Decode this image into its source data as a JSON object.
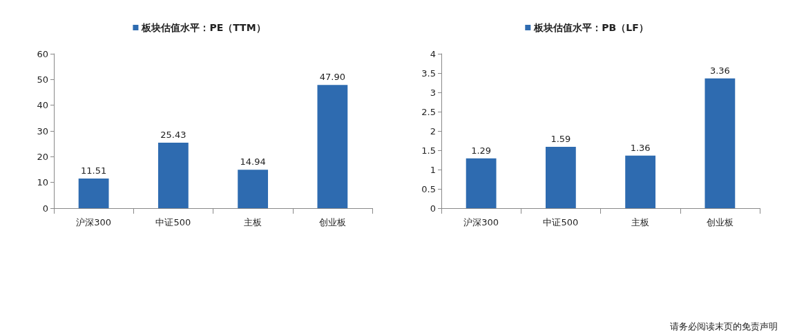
{
  "chart_data": [
    {
      "type": "bar",
      "categories": [
        "沪深300",
        "中证500",
        "主板",
        "创业板"
      ],
      "series": [
        {
          "name": "板块估值水平：PE（TTM）",
          "color": "#2e6bb0",
          "values": [
            11.51,
            25.43,
            14.94,
            47.9
          ]
        }
      ],
      "value_labels": [
        "11.51",
        "25.43",
        "14.94",
        "47.90"
      ],
      "ylim": [
        0,
        60
      ],
      "yticks": [
        0,
        10,
        20,
        30,
        40,
        50,
        60
      ],
      "grid": false,
      "legend": "top"
    },
    {
      "type": "bar",
      "categories": [
        "沪深300",
        "中证500",
        "主板",
        "创业板"
      ],
      "series": [
        {
          "name": "板块估值水平：PB（LF）",
          "color": "#2e6bb0",
          "values": [
            1.29,
            1.59,
            1.36,
            3.36
          ]
        }
      ],
      "value_labels": [
        "1.29",
        "1.59",
        "1.36",
        "3.36"
      ],
      "ylim": [
        0,
        4
      ],
      "yticks": [
        0,
        0.5,
        1,
        1.5,
        2,
        2.5,
        3,
        3.5,
        4
      ],
      "grid": false,
      "legend": "top",
      "annotations": [
        "请务必阅读末页的免责声明"
      ]
    }
  ]
}
